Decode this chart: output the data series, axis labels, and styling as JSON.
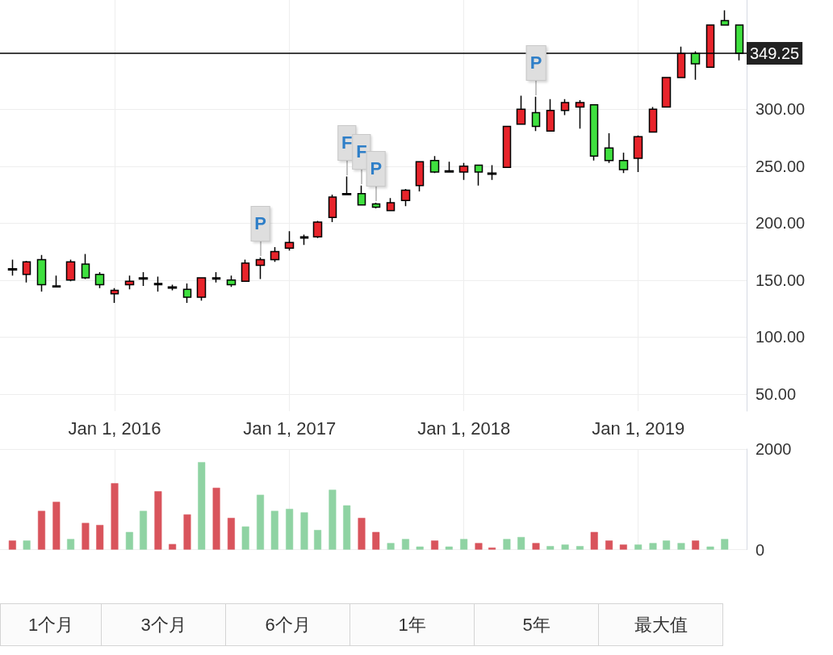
{
  "chart_data": [
    {
      "type": "candlestick",
      "x": [
        "2015-06",
        "2015-07",
        "2015-08",
        "2015-09",
        "2015-10",
        "2015-11",
        "2015-12",
        "2016-01",
        "2016-02",
        "2016-03",
        "2016-04",
        "2016-05",
        "2016-06",
        "2016-07",
        "2016-08",
        "2016-09",
        "2016-10",
        "2016-11",
        "2016-12",
        "2017-01",
        "2017-02",
        "2017-03",
        "2017-04",
        "2017-05",
        "2017-06",
        "2017-07",
        "2017-08",
        "2017-09",
        "2017-10",
        "2017-11",
        "2017-12",
        "2018-01",
        "2018-02",
        "2018-03",
        "2018-04",
        "2018-05",
        "2018-06",
        "2018-07",
        "2018-08",
        "2018-09",
        "2018-10",
        "2018-11",
        "2018-12",
        "2019-01",
        "2019-02",
        "2019-03",
        "2019-04",
        "2019-05",
        "2019-06",
        "2019-07",
        "2019-08"
      ],
      "ohlc": [
        [
          159,
          168,
          154,
          160
        ],
        [
          155,
          167,
          148,
          166
        ],
        [
          168,
          172,
          140,
          146
        ],
        [
          144,
          154,
          144,
          145
        ],
        [
          150,
          168,
          149,
          166
        ],
        [
          164,
          173,
          151,
          152
        ],
        [
          155,
          157,
          143,
          146
        ],
        [
          138,
          143,
          130,
          141
        ],
        [
          146,
          154,
          142,
          149
        ],
        [
          151,
          157,
          145,
          152
        ],
        [
          146,
          153,
          140,
          147
        ],
        [
          143,
          146,
          141,
          144
        ],
        [
          142,
          147,
          130,
          135
        ],
        [
          135,
          152,
          132,
          152
        ],
        [
          151,
          157,
          148,
          152
        ],
        [
          150,
          154,
          144,
          146
        ],
        [
          149,
          168,
          149,
          165
        ],
        [
          163,
          170,
          151,
          168
        ],
        [
          168,
          179,
          166,
          175
        ],
        [
          178,
          193,
          176,
          183
        ],
        [
          187,
          190,
          181,
          188
        ],
        [
          188,
          202,
          187,
          201
        ],
        [
          205,
          225,
          201,
          223
        ],
        [
          225,
          241,
          225,
          226
        ],
        [
          226,
          233,
          216,
          216
        ],
        [
          217,
          218,
          213,
          214
        ],
        [
          211,
          222,
          211,
          218
        ],
        [
          220,
          230,
          215,
          229
        ],
        [
          233,
          254,
          228,
          254
        ],
        [
          255,
          259,
          244,
          245
        ],
        [
          245,
          254,
          245,
          246
        ],
        [
          245,
          253,
          238,
          250
        ],
        [
          251,
          251,
          233,
          245
        ],
        [
          243,
          251,
          238,
          244
        ],
        [
          249,
          285,
          249,
          285
        ],
        [
          287,
          312,
          287,
          300
        ],
        [
          297,
          311,
          281,
          285
        ],
        [
          281,
          309,
          281,
          299
        ],
        [
          299,
          309,
          295,
          306
        ],
        [
          302,
          308,
          283,
          306
        ],
        [
          304,
          304,
          255,
          259
        ],
        [
          266,
          279,
          253,
          255
        ],
        [
          255,
          262,
          244,
          247
        ],
        [
          257,
          277,
          245,
          276
        ],
        [
          280,
          302,
          280,
          300
        ],
        [
          302,
          328,
          302,
          328
        ],
        [
          328,
          355,
          328,
          349
        ],
        [
          349,
          351,
          326,
          340
        ],
        [
          337,
          374,
          337,
          374
        ],
        [
          378,
          387,
          374,
          374
        ],
        [
          374,
          374,
          343,
          349.25
        ]
      ],
      "colors": [
        "#000000",
        "#e8242b",
        "#3fe03f",
        "#000000",
        "#e8242b",
        "#3fe03f",
        "#3fe03f",
        "#e8242b",
        "#e8242b",
        "#000000",
        "#000000",
        "#000000",
        "#3fe03f",
        "#e8242b",
        "#000000",
        "#3fe03f",
        "#e8242b",
        "#e8242b",
        "#e8242b",
        "#e8242b",
        "#000000",
        "#e8242b",
        "#e8242b",
        "#000000",
        "#3fe03f",
        "#3fe03f",
        "#e8242b",
        "#e8242b",
        "#e8242b",
        "#3fe03f",
        "#000000",
        "#e8242b",
        "#3fe03f",
        "#000000",
        "#e8242b",
        "#e8242b",
        "#3fe03f",
        "#e8242b",
        "#e8242b",
        "#e8242b",
        "#3fe03f",
        "#3fe03f",
        "#3fe03f",
        "#e8242b",
        "#e8242b",
        "#e8242b",
        "#e8242b",
        "#3fe03f",
        "#e8242b",
        "#3fe03f",
        "#3fe03f"
      ],
      "xlim": [
        "2015-05-06",
        "2019-08-16"
      ],
      "xticks": [
        {
          "value": "2016-01",
          "label": "Jan 1, 2016"
        },
        {
          "value": "2017-01",
          "label": "Jan 1, 2017"
        },
        {
          "value": "2018-01",
          "label": "Jan 1, 2018"
        },
        {
          "value": "2019-01",
          "label": "Jan 1, 2019"
        }
      ],
      "ylim": [
        35,
        396
      ],
      "yticks": [
        {
          "value": 50,
          "label": "50.00"
        },
        {
          "value": 100,
          "label": "100.00"
        },
        {
          "value": 150,
          "label": "150.00"
        },
        {
          "value": 200,
          "label": "200.00"
        },
        {
          "value": 250,
          "label": "250.00"
        },
        {
          "value": 300,
          "label": "300.00"
        }
      ],
      "grid": true,
      "ref_lines": [
        {
          "axis": "y",
          "value": 349.25,
          "label": "349.25",
          "color": "#000000"
        }
      ],
      "annotations": [
        {
          "text": "P",
          "x": "2016-11",
          "y": 170
        },
        {
          "text": "F",
          "x": "2017-05",
          "y": 241
        },
        {
          "text": "F",
          "x": "2017-06",
          "y": 233
        },
        {
          "text": "P",
          "x": "2017-07",
          "y": 218
        },
        {
          "text": "P",
          "x": "2018-06",
          "y": 311
        }
      ]
    },
    {
      "type": "bar",
      "x": [
        "2015-06",
        "2015-07",
        "2015-08",
        "2015-09",
        "2015-10",
        "2015-11",
        "2015-12",
        "2016-01",
        "2016-02",
        "2016-03",
        "2016-04",
        "2016-05",
        "2016-06",
        "2016-07",
        "2016-08",
        "2016-09",
        "2016-10",
        "2016-11",
        "2016-12",
        "2017-01",
        "2017-02",
        "2017-03",
        "2017-04",
        "2017-05",
        "2017-06",
        "2017-07",
        "2017-08",
        "2017-09",
        "2017-10",
        "2017-11",
        "2017-12",
        "2018-01",
        "2018-02",
        "2018-03",
        "2018-04",
        "2018-05",
        "2018-06",
        "2018-07",
        "2018-08",
        "2018-09",
        "2018-10",
        "2018-11",
        "2018-12",
        "2019-01",
        "2019-02",
        "2019-03",
        "2019-04",
        "2019-05",
        "2019-06",
        "2019-07"
      ],
      "values": [
        180,
        180,
        770,
        950,
        210,
        530,
        490,
        1320,
        350,
        770,
        1160,
        110,
        700,
        1740,
        1230,
        630,
        460,
        1090,
        770,
        810,
        740,
        390,
        1190,
        880,
        630,
        350,
        130,
        210,
        60,
        180,
        60,
        210,
        130,
        40,
        210,
        250,
        130,
        70,
        100,
        70,
        350,
        180,
        100,
        100,
        130,
        180,
        130,
        180,
        60,
        210
      ],
      "colors": [
        "#d9545c",
        "#8fd3a3",
        "#d9545c",
        "#d9545c",
        "#8fd3a3",
        "#d9545c",
        "#d9545c",
        "#d9545c",
        "#8fd3a3",
        "#8fd3a3",
        "#d9545c",
        "#d9545c",
        "#d9545c",
        "#8fd3a3",
        "#d9545c",
        "#d9545c",
        "#8fd3a3",
        "#8fd3a3",
        "#8fd3a3",
        "#8fd3a3",
        "#8fd3a3",
        "#8fd3a3",
        "#8fd3a3",
        "#8fd3a3",
        "#d9545c",
        "#d9545c",
        "#8fd3a3",
        "#8fd3a3",
        "#8fd3a3",
        "#d9545c",
        "#8fd3a3",
        "#8fd3a3",
        "#d9545c",
        "#d9545c",
        "#8fd3a3",
        "#8fd3a3",
        "#d9545c",
        "#8fd3a3",
        "#8fd3a3",
        "#8fd3a3",
        "#d9545c",
        "#d9545c",
        "#d9545c",
        "#8fd3a3",
        "#8fd3a3",
        "#8fd3a3",
        "#8fd3a3",
        "#d9545c",
        "#8fd3a3",
        "#8fd3a3"
      ],
      "xlim": [
        "2015-05-06",
        "2019-08-16"
      ],
      "xticks": [
        {
          "value": "2016-01",
          "label": null
        },
        {
          "value": "2017-01",
          "label": null
        },
        {
          "value": "2018-01",
          "label": null
        },
        {
          "value": "2019-01",
          "label": null
        }
      ],
      "ylim": [
        0,
        2000
      ],
      "yticks": [
        0,
        2000
      ],
      "grid": true,
      "tick_labels": "y",
      "annotations": [
        "1个月",
        "3个月",
        "6个月",
        "1年",
        "5年",
        "最大值"
      ]
    }
  ]
}
